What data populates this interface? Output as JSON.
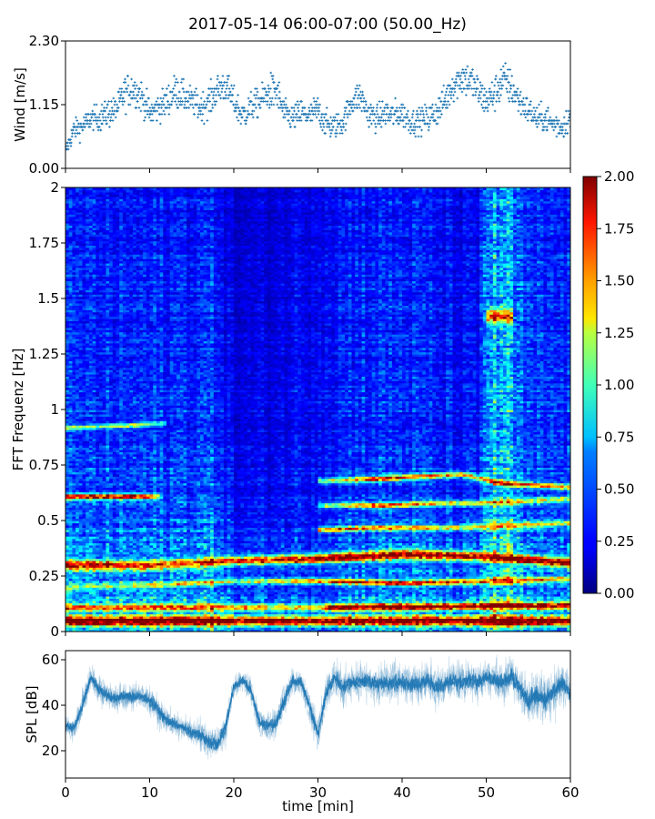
{
  "figure": {
    "title": "2017-05-14 06:00-07:00 (50.00_Hz)"
  },
  "chart_data": [
    {
      "name": "wind",
      "type": "scatter",
      "ylabel": "Wind [m/s]",
      "xlabel": "",
      "xlim": [
        0,
        60
      ],
      "ylim": [
        0.0,
        2.3
      ],
      "yticks": [
        "0.00",
        "1.15",
        "2.30"
      ],
      "yticks_values": [
        0.0,
        1.15,
        2.3
      ],
      "marker_color": "#1f77b4",
      "envelope": {
        "x": [
          0,
          1,
          2,
          3,
          4,
          5,
          6,
          7,
          8,
          9,
          10,
          11,
          12,
          13,
          14,
          15,
          16,
          17,
          18,
          19,
          20,
          21,
          22,
          23,
          24,
          25,
          26,
          27,
          28,
          29,
          30,
          31,
          32,
          33,
          34,
          35,
          36,
          37,
          38,
          39,
          40,
          41,
          42,
          43,
          44,
          45,
          46,
          47,
          48,
          49,
          50,
          51,
          52,
          53,
          54,
          55,
          56,
          57,
          58,
          59,
          60
        ],
        "mean": [
          0.3,
          0.7,
          0.75,
          0.9,
          0.9,
          1.0,
          1.05,
          1.35,
          1.45,
          1.3,
          1.0,
          1.1,
          1.2,
          1.4,
          1.3,
          1.2,
          1.1,
          1.2,
          1.4,
          1.5,
          1.2,
          0.95,
          1.1,
          1.2,
          1.35,
          1.4,
          1.0,
          0.9,
          1.0,
          0.95,
          1.05,
          0.8,
          0.75,
          0.85,
          1.2,
          1.3,
          1.0,
          0.9,
          1.0,
          0.95,
          1.0,
          0.85,
          0.85,
          0.9,
          1.0,
          1.2,
          1.5,
          1.65,
          1.6,
          1.4,
          1.2,
          1.35,
          1.6,
          1.45,
          1.2,
          1.05,
          0.9,
          0.9,
          0.8,
          0.75,
          0.95
        ],
        "spread": [
          0.25,
          0.35,
          0.35,
          0.4,
          0.4,
          0.45,
          0.45,
          0.55,
          0.55,
          0.5,
          0.45,
          0.45,
          0.5,
          0.55,
          0.5,
          0.45,
          0.45,
          0.5,
          0.5,
          0.55,
          0.5,
          0.45,
          0.45,
          0.5,
          0.55,
          0.6,
          0.45,
          0.45,
          0.45,
          0.45,
          0.5,
          0.4,
          0.4,
          0.4,
          0.45,
          0.5,
          0.45,
          0.4,
          0.45,
          0.45,
          0.45,
          0.4,
          0.4,
          0.45,
          0.5,
          0.5,
          0.55,
          0.6,
          0.55,
          0.55,
          0.5,
          0.55,
          0.6,
          0.55,
          0.5,
          0.45,
          0.4,
          0.45,
          0.4,
          0.4,
          0.45
        ],
        "quantization_step": 0.0575
      }
    },
    {
      "name": "spectrogram",
      "type": "heatmap",
      "ylabel": "FFT Frequenz [Hz]",
      "xlabel": "",
      "xlim": [
        0,
        60
      ],
      "ylim": [
        0,
        2
      ],
      "yticks": [
        "0",
        "0.25",
        "0.5",
        "0.75",
        "1",
        "1.25",
        "1.5",
        "1.75",
        "2"
      ],
      "yticks_values": [
        0,
        0.25,
        0.5,
        0.75,
        1.0,
        1.25,
        1.5,
        1.75,
        2.0
      ],
      "colormap": "jet",
      "colorbar": {
        "range": [
          0.0,
          2.0
        ],
        "ticks": [
          "0.00",
          "0.25",
          "0.50",
          "0.75",
          "1.00",
          "1.25",
          "1.50",
          "1.75",
          "2.00"
        ],
        "ticks_values": [
          0.0,
          0.25,
          0.5,
          0.75,
          1.0,
          1.25,
          1.5,
          1.75,
          2.0
        ]
      },
      "base_level": {
        "x": [
          0,
          10,
          18,
          20,
          25,
          30,
          35,
          40,
          45,
          49,
          50,
          52,
          53,
          55,
          60
        ],
        "low_freq": [
          0.7,
          0.7,
          0.8,
          0.5,
          0.5,
          0.5,
          0.65,
          0.65,
          0.6,
          0.55,
          0.85,
          0.95,
          0.85,
          0.6,
          0.6
        ],
        "high_freq": [
          0.28,
          0.28,
          0.3,
          0.15,
          0.18,
          0.25,
          0.3,
          0.3,
          0.25,
          0.2,
          0.55,
          0.6,
          0.5,
          0.3,
          0.3
        ]
      },
      "bands": [
        {
          "x": [
            0,
            60
          ],
          "f": [
            0.05,
            0.05
          ],
          "level": [
            1.8,
            1.8
          ],
          "width": 0.02
        },
        {
          "x": [
            0,
            30,
            32,
            60
          ],
          "f": [
            0.11,
            0.11,
            0.11,
            0.12
          ],
          "level": [
            1.1,
            1.0,
            1.8,
            1.6
          ],
          "width": 0.015
        },
        {
          "x": [
            0,
            10,
            20,
            30,
            40,
            50,
            60
          ],
          "f": [
            0.3,
            0.3,
            0.32,
            0.33,
            0.35,
            0.34,
            0.31
          ],
          "level": [
            1.7,
            1.3,
            1.4,
            1.8,
            1.9,
            1.6,
            1.9
          ],
          "width": 0.02
        },
        {
          "x": [
            0,
            10,
            20,
            30,
            40,
            50,
            60
          ],
          "f": [
            0.2,
            0.21,
            0.23,
            0.23,
            0.22,
            0.23,
            0.24
          ],
          "level": [
            0.6,
            0.7,
            0.7,
            1.3,
            1.5,
            1.2,
            1.0
          ],
          "width": 0.012
        },
        {
          "x": [
            30,
            37,
            45,
            53,
            60
          ],
          "f": [
            0.46,
            0.47,
            0.47,
            0.48,
            0.49
          ],
          "level": [
            1.2,
            1.3,
            1.0,
            1.1,
            1.0
          ],
          "width": 0.012
        },
        {
          "x": [
            0,
            8,
            11
          ],
          "f": [
            0.61,
            0.61,
            0.61
          ],
          "level": [
            1.7,
            1.9,
            0.9
          ],
          "width": 0.012
        },
        {
          "x": [
            30,
            38,
            45,
            50,
            55,
            60
          ],
          "f": [
            0.57,
            0.57,
            0.58,
            0.58,
            0.59,
            0.6
          ],
          "level": [
            0.7,
            1.4,
            1.0,
            0.9,
            0.9,
            0.9
          ],
          "width": 0.012
        },
        {
          "x": [
            30,
            37,
            47,
            52,
            60
          ],
          "f": [
            0.68,
            0.69,
            0.71,
            0.67,
            0.65
          ],
          "level": [
            0.7,
            1.5,
            1.1,
            1.3,
            1.3
          ],
          "width": 0.012
        },
        {
          "x": [
            0,
            8,
            12
          ],
          "f": [
            0.92,
            0.93,
            0.94
          ],
          "level": [
            0.8,
            1.0,
            0.6
          ],
          "width": 0.01
        },
        {
          "x": [
            50,
            53
          ],
          "f": [
            1.42,
            1.42
          ],
          "level": [
            1.2,
            1.2
          ],
          "width": 0.03
        }
      ]
    },
    {
      "name": "spl",
      "type": "line",
      "ylabel": "SPL [dB]",
      "xlabel": "time [min]",
      "xlim": [
        0,
        60
      ],
      "ylim": [
        8,
        64
      ],
      "yticks": [
        "20",
        "40",
        "60"
      ],
      "yticks_values": [
        20,
        40,
        60
      ],
      "xticks": [
        "0",
        "10",
        "20",
        "30",
        "40",
        "50",
        "60"
      ],
      "xticks_values": [
        0,
        10,
        20,
        30,
        40,
        50,
        60
      ],
      "line_color": "#1f77b4",
      "series": [
        {
          "x": [
            0,
            1,
            2,
            3,
            4,
            5,
            6,
            7,
            8,
            9,
            10,
            11,
            12,
            13,
            14,
            15,
            16,
            17,
            18,
            19,
            20,
            21,
            22,
            23,
            24,
            25,
            26,
            27,
            28,
            29,
            30,
            31,
            32,
            33,
            34,
            35,
            36,
            37,
            38,
            39,
            40,
            41,
            42,
            43,
            44,
            45,
            46,
            47,
            48,
            49,
            50,
            51,
            52,
            53,
            54,
            55,
            56,
            57,
            58,
            59,
            60
          ],
          "mean": [
            31,
            30,
            40,
            52,
            47,
            44,
            43,
            44,
            44,
            44,
            42,
            38,
            33,
            32,
            30,
            28,
            27,
            24,
            23,
            30,
            48,
            51,
            47,
            33,
            31,
            32,
            42,
            51,
            50,
            40,
            27,
            46,
            52,
            48,
            50,
            50,
            51,
            49,
            50,
            50,
            50,
            49,
            49,
            51,
            48,
            49,
            51,
            50,
            51,
            50,
            53,
            51,
            50,
            53,
            47,
            42,
            45,
            42,
            46,
            50,
            45
          ],
          "spread": [
            5,
            6,
            7,
            6,
            7,
            6,
            6,
            6,
            7,
            6,
            7,
            8,
            6,
            6,
            6,
            7,
            7,
            8,
            7,
            8,
            6,
            5,
            6,
            7,
            6,
            8,
            8,
            6,
            6,
            7,
            8,
            9,
            8,
            9,
            8,
            9,
            9,
            9,
            9,
            10,
            9,
            9,
            10,
            9,
            10,
            9,
            9,
            10,
            9,
            9,
            8,
            9,
            9,
            10,
            10,
            11,
            11,
            11,
            11,
            10,
            10
          ]
        }
      ]
    }
  ]
}
